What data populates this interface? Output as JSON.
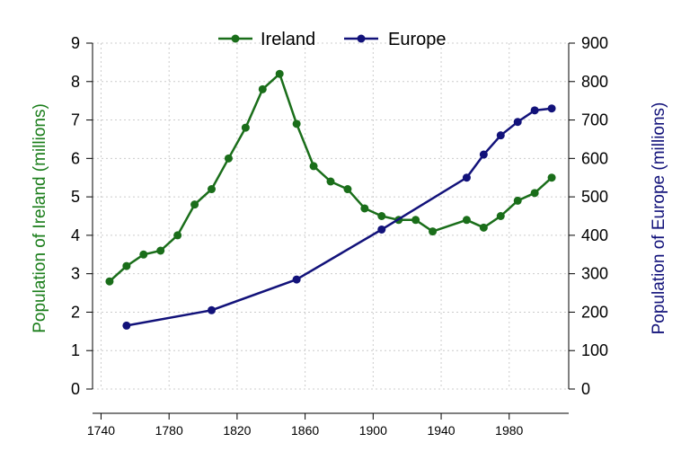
{
  "chart_data": {
    "type": "line",
    "title": "",
    "xlabel": "",
    "ylabel_left": "Population of Ireland (millions)",
    "ylabel_right": "Population of Europe (millions)",
    "xlim": [
      1735,
      2015
    ],
    "xticks": [
      1740,
      1780,
      1820,
      1860,
      1900,
      1940,
      1980
    ],
    "ylim_left": [
      0,
      9
    ],
    "yticks_left": [
      0,
      1,
      2,
      3,
      4,
      5,
      6,
      7,
      8,
      9
    ],
    "ylim_right": [
      0,
      900
    ],
    "yticks_right": [
      0,
      100,
      200,
      300,
      400,
      500,
      600,
      700,
      800,
      900
    ],
    "grid": true,
    "legend_position": "top-center",
    "series": [
      {
        "name": "Ireland",
        "axis": "left",
        "color": "#1a6e1a",
        "x": [
          1745,
          1755,
          1765,
          1775,
          1785,
          1795,
          1805,
          1815,
          1825,
          1835,
          1845,
          1855,
          1865,
          1875,
          1885,
          1895,
          1905,
          1915,
          1925,
          1935,
          1955,
          1965,
          1975,
          1985,
          1995,
          2005
        ],
        "y": [
          2.8,
          3.2,
          3.5,
          3.6,
          4.0,
          4.8,
          5.2,
          6.0,
          6.8,
          7.8,
          8.2,
          6.9,
          5.8,
          5.4,
          5.2,
          4.7,
          4.5,
          4.4,
          4.4,
          4.1,
          4.4,
          4.2,
          4.5,
          4.9,
          5.1,
          5.5
        ]
      },
      {
        "name": "Europe",
        "axis": "right",
        "color": "#12127a",
        "x": [
          1755,
          1805,
          1855,
          1905,
          1955,
          1965,
          1975,
          1985,
          1995,
          2005
        ],
        "y": [
          165,
          205,
          285,
          415,
          550,
          610,
          660,
          695,
          725,
          730
        ]
      }
    ]
  }
}
